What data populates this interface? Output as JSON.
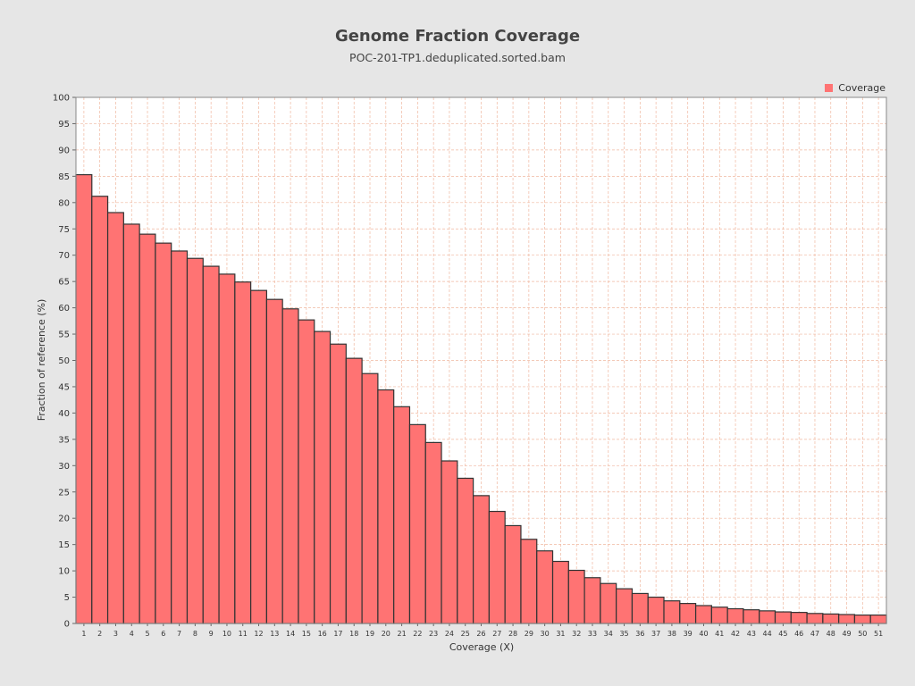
{
  "chart_data": {
    "type": "bar",
    "title": "Genome Fraction Coverage",
    "subtitle": "POC-201-TP1.deduplicated.sorted.bam",
    "xlabel": "Coverage (X)",
    "ylabel": "Fraction of reference (%)",
    "ylim": [
      0,
      100
    ],
    "yticks": [
      0,
      5,
      10,
      15,
      20,
      25,
      30,
      35,
      40,
      45,
      50,
      55,
      60,
      65,
      70,
      75,
      80,
      85,
      90,
      95,
      100
    ],
    "grid": true,
    "legend_position": "top-right",
    "categories": [
      "1",
      "2",
      "3",
      "4",
      "5",
      "6",
      "7",
      "8",
      "9",
      "10",
      "11",
      "12",
      "13",
      "14",
      "15",
      "16",
      "17",
      "18",
      "19",
      "20",
      "21",
      "22",
      "23",
      "24",
      "25",
      "26",
      "27",
      "28",
      "29",
      "30",
      "31",
      "32",
      "33",
      "34",
      "35",
      "36",
      "37",
      "38",
      "39",
      "40",
      "41",
      "42",
      "43",
      "44",
      "45",
      "46",
      "47",
      "48",
      "49",
      "50",
      "51"
    ],
    "series": [
      {
        "name": "Coverage",
        "color": "#ff7373",
        "values": [
          85.3,
          81.2,
          78.1,
          75.9,
          74.0,
          72.3,
          70.8,
          69.4,
          67.9,
          66.4,
          64.9,
          63.3,
          61.6,
          59.8,
          57.7,
          55.5,
          53.1,
          50.4,
          47.5,
          44.4,
          41.2,
          37.8,
          34.4,
          30.9,
          27.6,
          24.3,
          21.3,
          18.6,
          16.0,
          13.8,
          11.8,
          10.1,
          8.7,
          7.6,
          6.6,
          5.7,
          5.0,
          4.3,
          3.8,
          3.4,
          3.1,
          2.8,
          2.6,
          2.4,
          2.2,
          2.1,
          1.9,
          1.8,
          1.7,
          1.6,
          1.6
        ]
      }
    ]
  },
  "colors": {
    "background": "#e6e6e6",
    "plot_background": "#ffffff",
    "gridline": "#f0b8a0",
    "bar_fill": "#ff7373",
    "bar_stroke": "#333333"
  }
}
